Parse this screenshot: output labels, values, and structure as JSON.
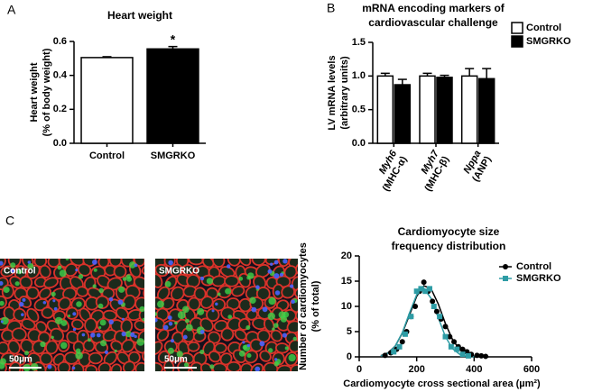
{
  "chart_data": [
    {
      "type": "bar",
      "panel_label": "A",
      "title": "Heart weight",
      "ylabel": [
        "Heart weight",
        "(% of body weight)"
      ],
      "categories": [
        "Control",
        "SMGRKO"
      ],
      "values": [
        0.505,
        0.556
      ],
      "errors": [
        0.005,
        0.014
      ],
      "colors": [
        "#ffffff",
        "#000000"
      ],
      "value_annotations": [
        null,
        "*"
      ],
      "ylim": [
        0,
        0.6
      ],
      "yticks": [
        {
          "value": 0,
          "label": "0.0"
        },
        0.2,
        0.4,
        0.6
      ]
    },
    {
      "type": "grouped_bar",
      "panel_label": "B",
      "title": [
        "mRNA encoding markers of",
        "cardiovascular challenge"
      ],
      "ylabel": [
        "LV mRNA levels",
        "(arbitrary units)"
      ],
      "categories": [
        "Myh6",
        "Myh7",
        "Nppa"
      ],
      "category_notes": [
        "(MHC-α)",
        "(MHC-β)",
        "(ANP)"
      ],
      "series": [
        {
          "name": "Control",
          "color": "#ffffff",
          "values": [
            1.0,
            1.0,
            1.0
          ],
          "errors": [
            0.04,
            0.04,
            0.11
          ]
        },
        {
          "name": "SMGRKO",
          "color": "#000000",
          "values": [
            0.87,
            0.98,
            0.96
          ],
          "errors": [
            0.08,
            0.03,
            0.15
          ]
        }
      ],
      "ylim": [
        0,
        1.5
      ],
      "yticks": [
        {
          "value": 0,
          "label": "0.0"
        },
        0.5,
        {
          "value": 1,
          "label": "1.0"
        },
        1.5
      ],
      "legend": "upper right"
    },
    {
      "type": "scatter",
      "title": [
        "Cardiomyocyte size",
        "frequency distribution"
      ],
      "ylabel": [
        "Number of cardiomyocytes",
        "(% of total)"
      ],
      "xlabel": "Cardiomyocyte cross sectional area (µm²)",
      "series": [
        {
          "name": "Control",
          "color": "#000000",
          "marker": "circle",
          "x": [
            90,
            110,
            130,
            150,
            165,
            180,
            195,
            210,
            225,
            240,
            255,
            270,
            285,
            300,
            315,
            330,
            345,
            360,
            375,
            390,
            410,
            425,
            440
          ],
          "values": [
            0.3,
            0.8,
            1.5,
            3,
            5,
            8,
            10,
            13,
            14.8,
            13,
            11,
            9,
            7.5,
            6,
            4,
            3,
            2,
            1.5,
            1,
            0.5,
            0.3,
            0.2,
            0.1
          ],
          "fit_x": [
            75,
            100,
            125,
            150,
            175,
            200,
            225,
            250,
            275,
            300,
            325,
            350,
            375,
            400,
            425,
            450
          ],
          "fit_values": [
            0.24,
            0.8,
            2.1,
            4.7,
            8.3,
            12.0,
            14.1,
            13.5,
            10.5,
            6.6,
            3.4,
            1.4,
            0.5,
            0.13,
            0.03,
            0
          ]
        },
        {
          "name": "SMGRKO",
          "color": "#2e9ca5",
          "marker": "square",
          "x": [
            120,
            140,
            160,
            180,
            200,
            215,
            230,
            245,
            260,
            280,
            300,
            320,
            340,
            360,
            380
          ],
          "values": [
            1,
            2,
            4.5,
            8,
            13,
            13.5,
            13,
            13.5,
            10,
            8,
            4,
            2,
            1.5,
            0.5,
            0.2
          ],
          "fit_x": [
            75,
            100,
            125,
            150,
            175,
            200,
            225,
            250,
            275,
            300,
            325,
            350,
            375,
            400
          ],
          "fit_values": [
            0.18,
            0.7,
            2.1,
            4.8,
            8.7,
            12.3,
            13.6,
            11.6,
            7.8,
            4.0,
            1.6,
            0.5,
            0.1,
            0.02
          ]
        }
      ],
      "xlim": [
        0,
        600
      ],
      "xticks": [
        0,
        200,
        400,
        600
      ],
      "ylim": [
        0,
        20
      ],
      "yticks": [
        0,
        5,
        10,
        15,
        20
      ],
      "legend": "upper right"
    }
  ],
  "micrographs": {
    "panel_label": "C",
    "images": [
      {
        "label": "Control",
        "scale_bar": "50µm"
      },
      {
        "label": "SMGRKO",
        "scale_bar": "50µm"
      }
    ]
  }
}
